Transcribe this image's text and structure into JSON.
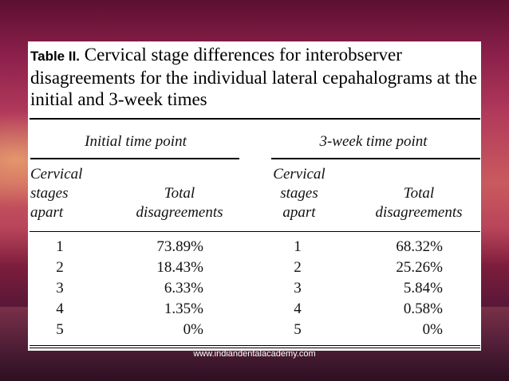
{
  "caption": {
    "label": "Table II.",
    "text": "Cervical stage differences for interobserver disagreements for the individual lateral cepahalograms at the initial and 3-week times"
  },
  "groups": {
    "initial": "Initial time point",
    "week3": "3-week time point"
  },
  "headers": {
    "stages_line1": "Cervical",
    "stages_line2": "stages",
    "stages_line3": "apart",
    "total_line1": "Total",
    "total_line2": "disagreements"
  },
  "rows": [
    {
      "stage_initial": "1",
      "pct_initial": "73.89%",
      "stage_week3": "1",
      "pct_week3": "68.32%"
    },
    {
      "stage_initial": "2",
      "pct_initial": "18.43%",
      "stage_week3": "2",
      "pct_week3": "25.26%"
    },
    {
      "stage_initial": "3",
      "pct_initial": "6.33%",
      "stage_week3": "3",
      "pct_week3": "5.84%"
    },
    {
      "stage_initial": "4",
      "pct_initial": "1.35%",
      "stage_week3": "4",
      "pct_week3": "0.58%"
    },
    {
      "stage_initial": "5",
      "pct_initial": "0%",
      "stage_week3": "5",
      "pct_week3": "0%"
    }
  ],
  "footer": "www.indiandentalacademy.com"
}
